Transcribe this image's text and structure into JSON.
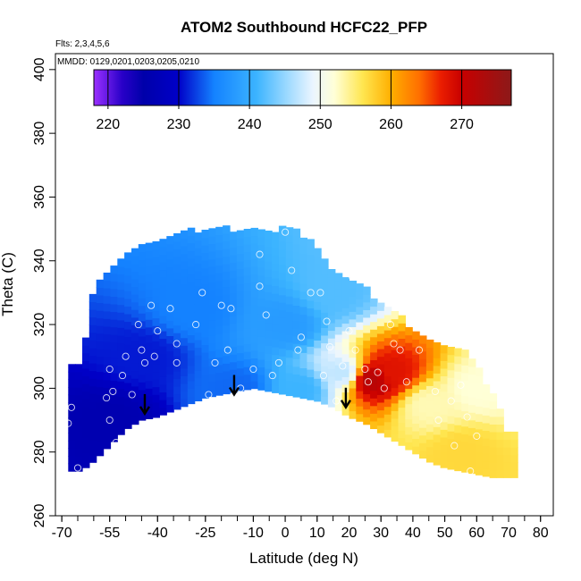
{
  "chart_data": {
    "type": "heatmap",
    "title": "ATOM2 Southbound HCFC22_PFP",
    "annotations": [
      "Flts: 2,3,4,5,6",
      "MMDD: 0129,0201,0203,0205,0210"
    ],
    "xlabel": "Latitude (deg N)",
    "ylabel": "Theta (C)",
    "xlim": [
      -72,
      84
    ],
    "ylim": [
      260,
      405
    ],
    "xticks": [
      -70,
      -55,
      -40,
      -25,
      -10,
      0,
      10,
      20,
      30,
      40,
      50,
      60,
      70,
      80
    ],
    "xtick_labels": [
      "-70",
      "-55",
      "-40",
      "-25",
      "-10",
      "0",
      "10",
      "20",
      "30",
      "40",
      "50",
      "60",
      "70",
      "80"
    ],
    "yticks": [
      260,
      280,
      300,
      320,
      340,
      360,
      380,
      400
    ],
    "ytick_labels": [
      "260",
      "280",
      "300",
      "320",
      "340",
      "360",
      "380",
      "400"
    ],
    "colorbar": {
      "range": [
        218,
        277
      ],
      "ticks": [
        220,
        230,
        240,
        250,
        260,
        270
      ],
      "tick_labels": [
        "220",
        "230",
        "240",
        "250",
        "260",
        "270"
      ]
    },
    "data_envelope": {
      "lat": [
        -64,
        -60,
        -56,
        -50,
        -45,
        -40,
        -35,
        -30,
        -25,
        -20,
        -15,
        -10,
        -5,
        0,
        5,
        10,
        15,
        20,
        25,
        30,
        35,
        40,
        45,
        50,
        55,
        60,
        65,
        70
      ],
      "top": [
        306,
        330,
        336,
        340,
        345,
        346,
        347,
        348,
        349,
        349,
        349,
        349,
        349,
        349,
        348,
        342,
        336,
        332,
        330,
        326,
        322,
        318,
        315,
        311,
        312,
        307,
        297,
        285
      ],
      "bottom": [
        274,
        277,
        281,
        287,
        290,
        291,
        293,
        295,
        297,
        298,
        299,
        300,
        299,
        298,
        297,
        296,
        294,
        291,
        289,
        286,
        283,
        280,
        277,
        275,
        274,
        273,
        272,
        272
      ]
    },
    "field_features": [
      {
        "lat": -55,
        "theta": 290,
        "value": 226
      },
      {
        "lat": -45,
        "theta": 310,
        "value": 231
      },
      {
        "lat": -30,
        "theta": 325,
        "value": 235
      },
      {
        "lat": -15,
        "theta": 300,
        "value": 234
      },
      {
        "lat": 0,
        "theta": 320,
        "value": 238
      },
      {
        "lat": 5,
        "theta": 300,
        "value": 241
      },
      {
        "lat": 15,
        "theta": 330,
        "value": 242
      },
      {
        "lat": 18,
        "theta": 305,
        "value": 247
      },
      {
        "lat": 27,
        "theta": 303,
        "value": 272
      },
      {
        "lat": 33,
        "theta": 305,
        "value": 268
      },
      {
        "lat": 45,
        "theta": 295,
        "value": 253
      },
      {
        "lat": 55,
        "theta": 280,
        "value": 257
      },
      {
        "lat": 60,
        "theta": 300,
        "value": 252
      }
    ],
    "samples": [
      [
        -68,
        289
      ],
      [
        -67,
        294
      ],
      [
        -65,
        275
      ],
      [
        -56,
        297
      ],
      [
        -55,
        290
      ],
      [
        -55,
        306
      ],
      [
        -54,
        299
      ],
      [
        -53,
        283
      ],
      [
        -51,
        304
      ],
      [
        -50,
        310
      ],
      [
        -46,
        320
      ],
      [
        -45,
        312
      ],
      [
        -44,
        308
      ],
      [
        -42,
        326
      ],
      [
        -41,
        310
      ],
      [
        -40,
        318
      ],
      [
        -36,
        325
      ],
      [
        -34,
        314
      ],
      [
        -30,
        292
      ],
      [
        -28,
        320
      ],
      [
        -24,
        298
      ],
      [
        -22,
        308
      ],
      [
        -20,
        326
      ],
      [
        -18,
        312
      ],
      [
        -17,
        325
      ],
      [
        -8,
        342
      ],
      [
        -8,
        332
      ],
      [
        -6,
        323
      ],
      [
        -4,
        304
      ],
      [
        -2,
        308
      ],
      [
        0,
        349
      ],
      [
        2,
        337
      ],
      [
        5,
        316
      ],
      [
        9,
        348
      ],
      [
        11,
        330
      ],
      [
        13,
        321
      ],
      [
        14,
        313
      ],
      [
        16,
        296
      ],
      [
        18,
        307
      ],
      [
        20,
        318
      ],
      [
        22,
        312
      ],
      [
        25,
        306
      ],
      [
        26,
        302
      ],
      [
        29,
        305
      ],
      [
        31,
        300
      ],
      [
        33,
        320
      ],
      [
        34,
        314
      ],
      [
        36,
        312
      ],
      [
        38,
        302
      ],
      [
        40,
        322
      ],
      [
        42,
        312
      ],
      [
        47,
        299
      ],
      [
        48,
        290
      ],
      [
        52,
        296
      ],
      [
        53,
        282
      ],
      [
        55,
        301
      ],
      [
        57,
        291
      ],
      [
        58,
        274
      ],
      [
        60,
        285
      ],
      [
        -14,
        300
      ],
      [
        -10,
        306
      ],
      [
        -7,
        287
      ],
      [
        -34,
        308
      ],
      [
        -48,
        298
      ],
      [
        -59,
        340
      ],
      [
        4,
        312
      ],
      [
        12,
        304
      ],
      [
        -26,
        330
      ],
      [
        8,
        330
      ],
      [
        21,
        335
      ]
    ],
    "arrows": [
      {
        "lat": -44,
        "theta": 292
      },
      {
        "lat": -16,
        "theta": 298
      },
      {
        "lat": 19,
        "theta": 294
      }
    ]
  }
}
